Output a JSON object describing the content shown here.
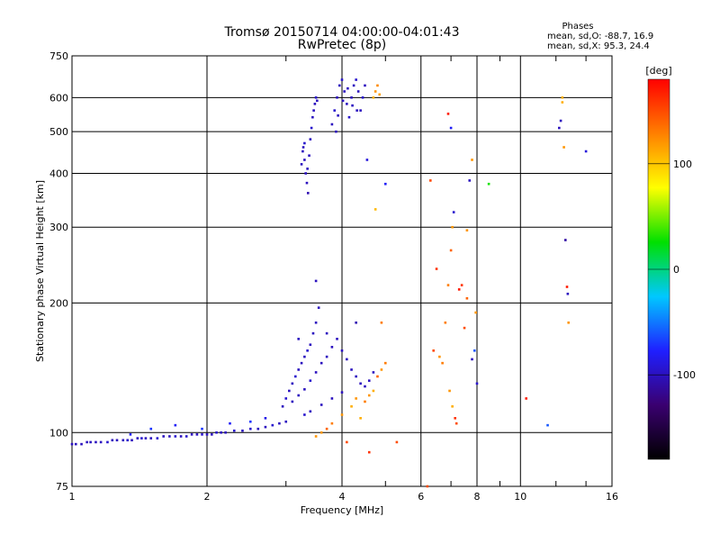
{
  "chart_data": {
    "type": "scatter",
    "title": "Tromsø 20150714 04:00:00-04:01:43",
    "subtitle": "RwPretec (8p)",
    "xlabel": "Frequency [MHz]",
    "ylabel": "Stationary phase Virtual Height [km]",
    "xscale": "log",
    "yscale": "log",
    "xlim": [
      1,
      16
    ],
    "ylim": [
      75,
      750
    ],
    "xticks": [
      1,
      2,
      4,
      6,
      8,
      10,
      16
    ],
    "yticks": [
      75,
      100,
      200,
      300,
      400,
      500,
      600,
      750
    ],
    "grid": true,
    "phase_stats": {
      "heading": "Phases",
      "line_o": "mean, sd,O: -88.7, 16.9",
      "line_x": "mean, sd,X:  95.3, 24.4"
    },
    "colorbar": {
      "label": "[deg]",
      "range": [
        -180,
        180
      ],
      "ticks": [
        -100,
        0,
        100
      ],
      "colormap": "rainbow",
      "stops": [
        "#000000",
        "#3a0070",
        "#1f1fff",
        "#00c8ff",
        "#00e000",
        "#ffff00",
        "#ff8000",
        "#ff0000"
      ]
    },
    "series": [
      {
        "points": [
          [
            1.0,
            94,
            -100
          ],
          [
            1.02,
            94,
            -100
          ],
          [
            1.05,
            94,
            -100
          ],
          [
            1.08,
            95,
            -100
          ],
          [
            1.1,
            95,
            -100
          ],
          [
            1.13,
            95,
            -100
          ],
          [
            1.16,
            95,
            -100
          ],
          [
            1.2,
            95,
            -95
          ],
          [
            1.23,
            96,
            -100
          ],
          [
            1.26,
            96,
            -100
          ],
          [
            1.3,
            96,
            -100
          ],
          [
            1.33,
            96,
            -95
          ],
          [
            1.36,
            96,
            -100
          ],
          [
            1.4,
            97,
            -100
          ],
          [
            1.43,
            97,
            -95
          ],
          [
            1.46,
            97,
            -100
          ],
          [
            1.5,
            97,
            -100
          ],
          [
            1.55,
            97,
            -95
          ],
          [
            1.6,
            98,
            -100
          ],
          [
            1.65,
            98,
            -100
          ],
          [
            1.7,
            98,
            -95
          ],
          [
            1.75,
            98,
            -100
          ],
          [
            1.8,
            98,
            -95
          ],
          [
            1.85,
            99,
            -100
          ],
          [
            1.9,
            99,
            -100
          ],
          [
            1.95,
            99,
            -95
          ],
          [
            2.0,
            99,
            -100
          ],
          [
            2.05,
            99,
            -100
          ],
          [
            2.1,
            100,
            -95
          ],
          [
            2.15,
            100,
            -100
          ],
          [
            2.2,
            100,
            -100
          ],
          [
            2.3,
            101,
            -95
          ],
          [
            2.4,
            101,
            -100
          ],
          [
            2.5,
            102,
            -95
          ],
          [
            2.6,
            102,
            -100
          ],
          [
            2.7,
            103,
            -100
          ],
          [
            2.8,
            104,
            -95
          ],
          [
            2.9,
            105,
            -100
          ],
          [
            3.0,
            106,
            -100
          ],
          [
            1.35,
            99,
            -80
          ],
          [
            1.5,
            102,
            -70
          ],
          [
            1.7,
            104,
            -80
          ],
          [
            1.95,
            102,
            -70
          ],
          [
            2.25,
            105,
            -80
          ],
          [
            2.5,
            106,
            -70
          ],
          [
            2.7,
            108,
            -85
          ],
          [
            3.25,
            420,
            -100
          ],
          [
            3.27,
            450,
            -100
          ],
          [
            3.3,
            470,
            -95
          ],
          [
            3.32,
            400,
            -100
          ],
          [
            3.34,
            380,
            -100
          ],
          [
            3.36,
            360,
            -105
          ],
          [
            3.38,
            440,
            -100
          ],
          [
            3.4,
            480,
            -100
          ],
          [
            3.42,
            510,
            -95
          ],
          [
            3.44,
            540,
            -100
          ],
          [
            3.46,
            560,
            -100
          ],
          [
            3.48,
            580,
            -100
          ],
          [
            3.5,
            600,
            -95
          ],
          [
            3.3,
            430,
            -100
          ],
          [
            3.35,
            410,
            -100
          ],
          [
            3.28,
            460,
            -100
          ],
          [
            3.52,
            590,
            -100
          ],
          [
            3.8,
            520,
            -100
          ],
          [
            3.85,
            560,
            -95
          ],
          [
            3.9,
            600,
            -100
          ],
          [
            3.95,
            640,
            -100
          ],
          [
            4.0,
            660,
            -95
          ],
          [
            4.05,
            620,
            -100
          ],
          [
            4.1,
            580,
            -100
          ],
          [
            4.15,
            540,
            -95
          ],
          [
            4.2,
            600,
            -100
          ],
          [
            4.25,
            640,
            -100
          ],
          [
            4.3,
            660,
            -95
          ],
          [
            4.35,
            620,
            -100
          ],
          [
            4.4,
            560,
            -100
          ],
          [
            4.45,
            600,
            -95
          ],
          [
            4.5,
            640,
            -100
          ],
          [
            3.88,
            500,
            -100
          ],
          [
            3.92,
            545,
            -100
          ],
          [
            4.02,
            590,
            -100
          ],
          [
            4.12,
            630,
            -100
          ],
          [
            4.22,
            575,
            -100
          ],
          [
            4.32,
            560,
            -100
          ],
          [
            2.95,
            115,
            -100
          ],
          [
            3.0,
            120,
            -95
          ],
          [
            3.05,
            125,
            -100
          ],
          [
            3.1,
            130,
            -100
          ],
          [
            3.15,
            135,
            -95
          ],
          [
            3.2,
            140,
            -100
          ],
          [
            3.25,
            145,
            -100
          ],
          [
            3.3,
            150,
            -100
          ],
          [
            3.35,
            155,
            -95
          ],
          [
            3.4,
            160,
            -100
          ],
          [
            3.45,
            170,
            -100
          ],
          [
            3.5,
            180,
            -100
          ],
          [
            3.55,
            195,
            -100
          ],
          [
            3.1,
            118,
            -100
          ],
          [
            3.2,
            122,
            -100
          ],
          [
            3.3,
            126,
            -100
          ],
          [
            3.4,
            132,
            -95
          ],
          [
            3.5,
            138,
            -100
          ],
          [
            3.6,
            145,
            -100
          ],
          [
            3.7,
            150,
            -100
          ],
          [
            3.8,
            158,
            -100
          ],
          [
            3.9,
            165,
            -100
          ],
          [
            4.0,
            155,
            -100
          ],
          [
            4.1,
            148,
            -100
          ],
          [
            4.2,
            140,
            -100
          ],
          [
            4.3,
            135,
            -100
          ],
          [
            4.4,
            130,
            -100
          ],
          [
            4.5,
            128,
            -100
          ],
          [
            4.6,
            132,
            -100
          ],
          [
            4.7,
            138,
            -100
          ],
          [
            3.3,
            110,
            -95
          ],
          [
            3.4,
            112,
            -100
          ],
          [
            3.6,
            116,
            -100
          ],
          [
            3.8,
            120,
            -100
          ],
          [
            4.0,
            124,
            -100
          ],
          [
            3.5,
            225,
            -100
          ],
          [
            3.7,
            170,
            -100
          ],
          [
            4.3,
            180,
            -105
          ],
          [
            3.2,
            165,
            -100
          ],
          [
            3.6,
            100,
            120
          ],
          [
            3.8,
            105,
            130
          ],
          [
            4.0,
            110,
            120
          ],
          [
            4.2,
            115,
            110
          ],
          [
            4.3,
            120,
            120
          ],
          [
            4.5,
            118,
            130
          ],
          [
            4.6,
            122,
            120
          ],
          [
            4.7,
            125,
            110
          ],
          [
            4.8,
            135,
            140
          ],
          [
            4.9,
            140,
            120
          ],
          [
            5.0,
            145,
            130
          ],
          [
            4.4,
            108,
            110
          ],
          [
            3.5,
            98,
            120
          ],
          [
            3.7,
            102,
            140
          ],
          [
            4.1,
            95,
            150
          ],
          [
            4.6,
            90,
            160
          ],
          [
            5.3,
            95,
            150
          ],
          [
            4.9,
            180,
            130
          ],
          [
            4.7,
            600,
            110
          ],
          [
            4.75,
            620,
            120
          ],
          [
            4.8,
            640,
            125
          ],
          [
            4.85,
            610,
            115
          ],
          [
            4.75,
            330,
            105
          ],
          [
            4.55,
            430,
            -90
          ],
          [
            5.0,
            378,
            -80
          ],
          [
            6.3,
            385,
            150
          ],
          [
            6.5,
            240,
            160
          ],
          [
            6.8,
            180,
            130
          ],
          [
            6.9,
            220,
            130
          ],
          [
            7.0,
            265,
            140
          ],
          [
            7.05,
            300,
            120
          ],
          [
            7.1,
            325,
            -95
          ],
          [
            7.0,
            510,
            -80
          ],
          [
            6.9,
            550,
            170
          ],
          [
            7.3,
            215,
            170
          ],
          [
            7.4,
            220,
            160
          ],
          [
            7.6,
            295,
            120
          ],
          [
            7.7,
            385,
            -100
          ],
          [
            7.8,
            430,
            120
          ],
          [
            7.9,
            155,
            -60
          ],
          [
            7.95,
            190,
            120
          ],
          [
            8.0,
            130,
            -95
          ],
          [
            7.8,
            148,
            -100
          ],
          [
            7.6,
            205,
            140
          ],
          [
            7.5,
            175,
            150
          ],
          [
            6.4,
            155,
            150
          ],
          [
            6.6,
            150,
            120
          ],
          [
            6.7,
            145,
            130
          ],
          [
            6.95,
            125,
            120
          ],
          [
            7.05,
            115,
            110
          ],
          [
            7.15,
            108,
            160
          ],
          [
            7.2,
            105,
            150
          ],
          [
            6.2,
            75,
            150
          ],
          [
            8.5,
            378,
            30
          ],
          [
            10.3,
            120,
            170
          ],
          [
            11.5,
            104,
            -60
          ],
          [
            12.2,
            510,
            -100
          ],
          [
            12.3,
            530,
            -100
          ],
          [
            12.4,
            585,
            110
          ],
          [
            12.5,
            460,
            120
          ],
          [
            12.6,
            280,
            -110
          ],
          [
            12.7,
            218,
            170
          ],
          [
            12.75,
            210,
            -100
          ],
          [
            12.8,
            180,
            120
          ],
          [
            14.0,
            450,
            -90
          ],
          [
            12.4,
            600,
            110
          ]
        ]
      }
    ]
  }
}
